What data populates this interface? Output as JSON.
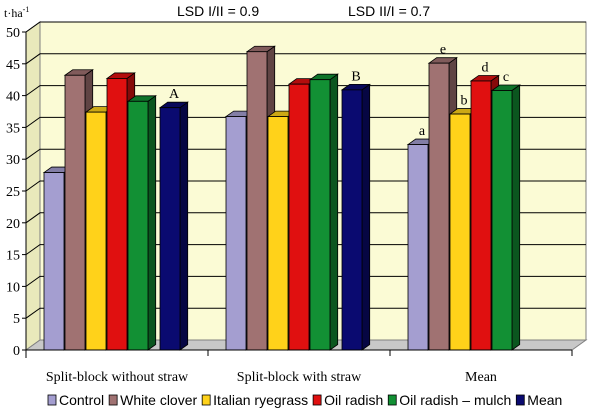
{
  "chart_data": {
    "type": "bar",
    "unit_label": "t·ha",
    "unit_exp": "-1",
    "header": [
      "LSD I/II = 0.9",
      "LSD II/I = 0.7"
    ],
    "ylim": [
      0,
      50
    ],
    "yticks": [
      0,
      5,
      10,
      15,
      20,
      25,
      30,
      35,
      40,
      45,
      50
    ],
    "categories": [
      "Split-block without straw",
      "Split-block with straw",
      "Mean"
    ],
    "series": [
      {
        "name": "Control",
        "color": "#a49ed0",
        "values": [
          27.9,
          36.7,
          32.3
        ]
      },
      {
        "name": "White clover",
        "color": "#a07272",
        "values": [
          43.2,
          46.9,
          45.1
        ]
      },
      {
        "name": "Italian ryegrass",
        "color": "#ffd21a",
        "values": [
          37.4,
          36.7,
          37.1
        ]
      },
      {
        "name": "Oil radish",
        "color": "#e01010",
        "values": [
          42.7,
          41.8,
          42.3
        ]
      },
      {
        "name": "Oil radish – mulch",
        "color": "#129034",
        "values": [
          39.1,
          42.5,
          40.8
        ]
      },
      {
        "name": "Mean",
        "color": "#0a0a70",
        "values": [
          38.1,
          40.9,
          null
        ]
      }
    ],
    "bar_letters": [
      {
        "category": 0,
        "series": 5,
        "text": "A"
      },
      {
        "category": 1,
        "series": 5,
        "text": "B"
      },
      {
        "category": 2,
        "series": 0,
        "text": "a"
      },
      {
        "category": 2,
        "series": 1,
        "text": "e"
      },
      {
        "category": 2,
        "series": 2,
        "text": "b"
      },
      {
        "category": 2,
        "series": 3,
        "text": "d"
      },
      {
        "category": 2,
        "series": 4,
        "text": "c"
      }
    ],
    "grid": true,
    "legend_position": "bottom"
  }
}
